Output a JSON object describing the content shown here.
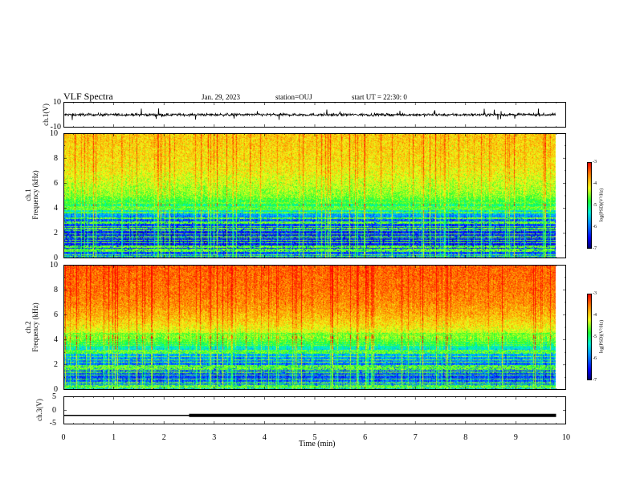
{
  "header": {
    "title": "VLF Spectra",
    "date": "Jan. 29, 2023",
    "station": "station=OUJ",
    "start": "start UT =  22:30: 0"
  },
  "chart_data": [
    {
      "type": "line",
      "panel": "ch.1 waveform",
      "ylabel": "ch.1(V)",
      "ylim": [
        -10,
        10
      ],
      "yticks": [
        "10",
        "-10"
      ],
      "x": [
        0,
        9.8
      ],
      "series": [
        {
          "values_summary": "noise band roughly -1.5 to 1.5 V centered at 0"
        }
      ]
    },
    {
      "type": "heatmap",
      "panel": "ch.1 spectrogram",
      "ylabel_top": "ch.1",
      "ylabel": "Frequency (kHz)",
      "ylim": [
        0,
        10
      ],
      "yticks": [
        "0",
        "2",
        "4",
        "6",
        "8",
        "10"
      ],
      "xlim": [
        0,
        10
      ],
      "data_end_min": 9.8,
      "z_profile": {
        "freq_khz": [
          0,
          0.5,
          1,
          2,
          3,
          3.5,
          4,
          5,
          6,
          7,
          8,
          10
        ],
        "logpsd": [
          -5.8,
          -6.2,
          -6.4,
          -6.4,
          -6.1,
          -5.7,
          -5.1,
          -4.5,
          -4.3,
          -4.1,
          -4.0,
          -3.9
        ]
      },
      "colorbar": {
        "label": "log(PSD)(V²/Hz)",
        "range": [
          -7,
          -3
        ],
        "ticks": [
          "-3",
          "-4",
          "-5",
          "-6",
          "-7"
        ]
      }
    },
    {
      "type": "heatmap",
      "panel": "ch.2 spectrogram",
      "ylabel_top": "ch.2",
      "ylabel": "Frequency (kHz)",
      "ylim": [
        0,
        10
      ],
      "yticks": [
        "0",
        "2",
        "4",
        "6",
        "8",
        "10"
      ],
      "xlim": [
        0,
        10
      ],
      "data_end_min": 9.8,
      "z_profile": {
        "freq_khz": [
          0,
          0.5,
          1,
          2,
          3,
          3.5,
          4,
          5,
          6,
          7,
          8,
          10
        ],
        "logpsd": [
          -5.6,
          -6.0,
          -6.2,
          -6.0,
          -5.6,
          -5.1,
          -4.6,
          -4.1,
          -3.8,
          -3.6,
          -3.5,
          -3.4
        ]
      },
      "colorbar": {
        "label": "log(PSD)(V²/Hz)",
        "range": [
          -7,
          -3
        ],
        "ticks": [
          "-3",
          "-4",
          "-5",
          "-6",
          "-7"
        ]
      }
    },
    {
      "type": "line",
      "panel": "ch.3 level",
      "ylabel": "ch.3(V)",
      "ylim": [
        -5,
        5
      ],
      "yticks": [
        "5",
        "0",
        "-5"
      ],
      "x": [
        0,
        2.5,
        9.8
      ],
      "y": [
        -2,
        -2,
        -2
      ],
      "thick_from_min": 2.5
    }
  ],
  "xaxis": {
    "label": "Time (min)",
    "ticks": [
      "0",
      "1",
      "2",
      "3",
      "4",
      "5",
      "6",
      "7",
      "8",
      "9",
      "10"
    ]
  }
}
